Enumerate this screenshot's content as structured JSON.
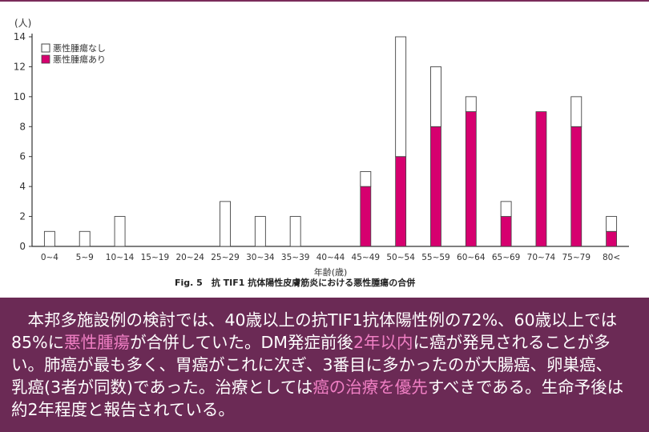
{
  "chart_data": {
    "type": "bar",
    "stacked": true,
    "y_unit_label": "(人)",
    "categories": [
      "0~4",
      "5~9",
      "10~14",
      "15~19",
      "20~24",
      "25~29",
      "30~34",
      "35~39",
      "40~44",
      "45~49",
      "50~54",
      "55~59",
      "60~64",
      "65~69",
      "70~74",
      "75~79",
      "80<"
    ],
    "series": [
      {
        "name": "悪性腫瘍あり",
        "values": [
          0,
          0,
          0,
          0,
          0,
          0,
          0,
          0,
          0,
          4,
          6,
          8,
          9,
          2,
          9,
          8,
          1
        ]
      },
      {
        "name": "悪性腫瘍なし",
        "values": [
          1,
          1,
          2,
          0,
          0,
          3,
          2,
          2,
          0,
          1,
          8,
          4,
          1,
          1,
          0,
          2,
          1
        ]
      }
    ],
    "ylim": [
      0,
      14
    ],
    "yticks": [
      0,
      2,
      4,
      6,
      8,
      10,
      12,
      14
    ],
    "xlabel": "年齢(歳)",
    "ylabel": "",
    "legend_position": "top-left",
    "grid": false,
    "colors": {
      "with_tumor": "#d6006f",
      "without_tumor": "#ffffff",
      "outline": "#444444"
    },
    "figure_caption": "Fig. 5　抗 TIF1 抗体陽性皮膚筋炎における悪性腫瘍の合併"
  },
  "description": {
    "segments": [
      {
        "text": "　本邦多施設例の検討では、40歳以上の抗TIF1抗体陽性例の72%、60歳以上では85%に",
        "highlight": false
      },
      {
        "text": "悪性腫瘍",
        "highlight": true
      },
      {
        "text": "が合併していた。DM発症前後",
        "highlight": false
      },
      {
        "text": "2年以内",
        "highlight": true
      },
      {
        "text": "に癌が発見されることが多い。肺癌が最も多く、胃癌がこれに次ぎ、3番目に多かったのが大腸癌、卵巣癌、乳癌(3者が同数)であった。治療としては",
        "highlight": false
      },
      {
        "text": "癌の治療を優先",
        "highlight": true
      },
      {
        "text": "すべきである。生命予後は約2年程度と報告されている。",
        "highlight": false
      }
    ],
    "highlight_color": "#f07fc4",
    "background": "#6b2a55"
  }
}
